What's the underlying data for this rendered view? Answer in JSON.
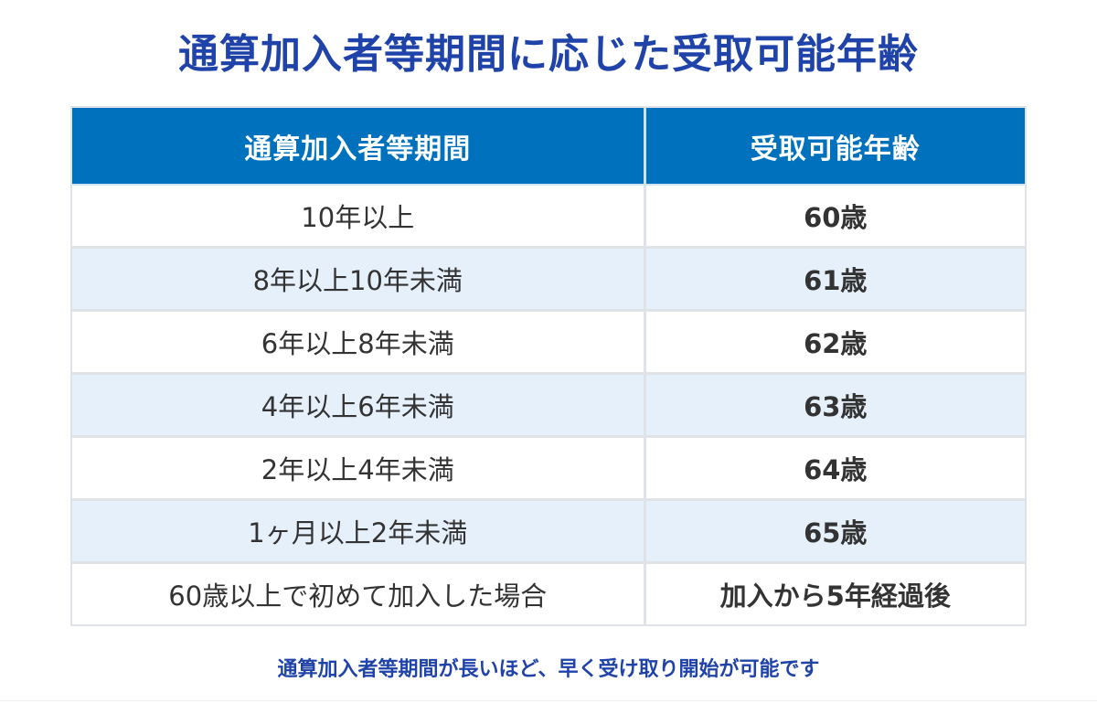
{
  "title": "通算加入者等期間に応じた受取可能年齢",
  "table": {
    "headers": [
      "通算加入者等期間",
      "受取可能年齢"
    ],
    "rows": [
      {
        "period": "10年以上",
        "age": "60歳"
      },
      {
        "period": "8年以上10年未満",
        "age": "61歳"
      },
      {
        "period": "6年以上8年未満",
        "age": "62歳"
      },
      {
        "period": "4年以上6年未満",
        "age": "63歳"
      },
      {
        "period": "2年以上4年未満",
        "age": "64歳"
      },
      {
        "period": "1ヶ月以上2年未満",
        "age": "65歳"
      },
      {
        "period": "60歳以上で初めて加入した場合",
        "age": "加入から5年経過後"
      }
    ]
  },
  "footer_note": "通算加入者等期間が長いほど、早く受け取り開始が可能です",
  "colors": {
    "title": "#1f43a8",
    "header_bg": "#0071bc",
    "header_text": "#ffffff",
    "alt_row_bg": "#e6f0fb",
    "border": "#dfe3e8",
    "body_text": "#333333"
  }
}
